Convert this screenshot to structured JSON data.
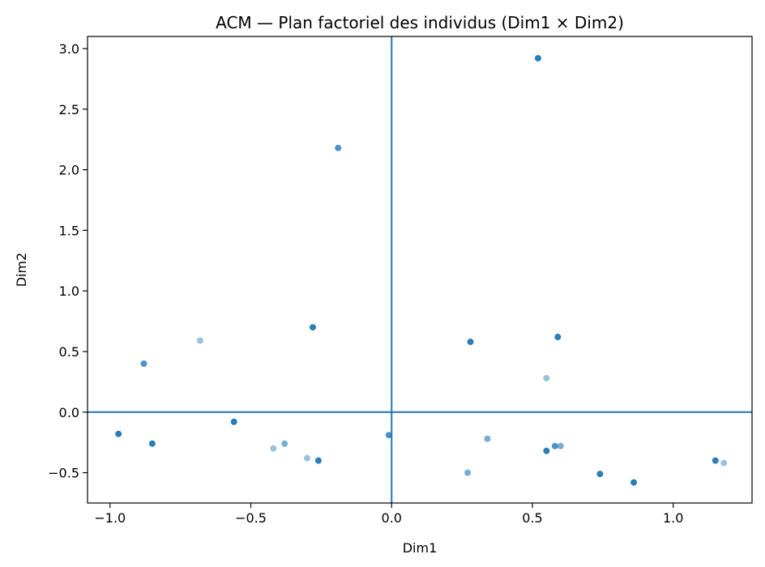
{
  "chart_data": {
    "type": "scatter",
    "title": "ACM — Plan factoriel des individus (Dim1 × Dim2)",
    "xlabel": "Dim1",
    "ylabel": "Dim2",
    "xlim": [
      -1.08,
      1.28
    ],
    "ylim": [
      -0.75,
      3.1
    ],
    "xticks": [
      -1.0,
      -0.5,
      0.0,
      0.5,
      1.0
    ],
    "xtick_labels": [
      "−1.0",
      "−0.5",
      "0.0",
      "0.5",
      "1.0"
    ],
    "yticks": [
      -0.5,
      0.0,
      0.5,
      1.0,
      1.5,
      2.0,
      2.5,
      3.0
    ],
    "ytick_labels": [
      "−0.5",
      "0.0",
      "0.5",
      "1.0",
      "1.5",
      "2.0",
      "2.5",
      "3.0"
    ],
    "reference_lines": {
      "x": 0.0,
      "y": 0.0
    },
    "grid": false,
    "color": "#1f77b4",
    "points": [
      {
        "x": 0.52,
        "y": 2.92,
        "alpha": 0.95
      },
      {
        "x": -0.19,
        "y": 2.18,
        "alpha": 0.8
      },
      {
        "x": -0.28,
        "y": 0.7,
        "alpha": 0.95
      },
      {
        "x": 0.28,
        "y": 0.58,
        "alpha": 0.95
      },
      {
        "x": 0.59,
        "y": 0.62,
        "alpha": 0.95
      },
      {
        "x": -0.68,
        "y": 0.59,
        "alpha": 0.45
      },
      {
        "x": -0.88,
        "y": 0.4,
        "alpha": 0.8
      },
      {
        "x": 0.55,
        "y": 0.28,
        "alpha": 0.45
      },
      {
        "x": -0.97,
        "y": -0.18,
        "alpha": 0.95
      },
      {
        "x": -0.85,
        "y": -0.26,
        "alpha": 0.95
      },
      {
        "x": -0.56,
        "y": -0.08,
        "alpha": 0.95
      },
      {
        "x": -0.42,
        "y": -0.3,
        "alpha": 0.45
      },
      {
        "x": -0.38,
        "y": -0.26,
        "alpha": 0.6
      },
      {
        "x": -0.3,
        "y": -0.38,
        "alpha": 0.45
      },
      {
        "x": -0.26,
        "y": -0.4,
        "alpha": 0.95
      },
      {
        "x": -0.01,
        "y": -0.19,
        "alpha": 0.8
      },
      {
        "x": 0.27,
        "y": -0.5,
        "alpha": 0.6
      },
      {
        "x": 0.34,
        "y": -0.22,
        "alpha": 0.6
      },
      {
        "x": 0.55,
        "y": -0.32,
        "alpha": 0.95
      },
      {
        "x": 0.58,
        "y": -0.28,
        "alpha": 0.8
      },
      {
        "x": 0.6,
        "y": -0.28,
        "alpha": 0.6
      },
      {
        "x": 0.74,
        "y": -0.51,
        "alpha": 0.95
      },
      {
        "x": 0.86,
        "y": -0.58,
        "alpha": 0.95
      },
      {
        "x": 1.15,
        "y": -0.4,
        "alpha": 0.95
      },
      {
        "x": 1.18,
        "y": -0.42,
        "alpha": 0.45
      }
    ]
  }
}
